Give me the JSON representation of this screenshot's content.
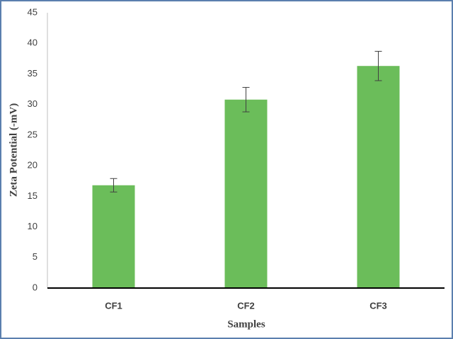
{
  "chart_data": {
    "type": "bar",
    "x_label": "Samples",
    "y_label": "Zeta Potential (-mV)",
    "categories": [
      "CF1",
      "CF2",
      "CF3"
    ],
    "values": [
      16.8,
      30.8,
      36.3
    ],
    "errors": [
      1.1,
      2.0,
      2.4
    ],
    "color": "#6bbd5a",
    "ylim": [
      0,
      45
    ],
    "yticks": [
      0,
      5,
      10,
      15,
      20,
      25,
      30,
      35,
      40,
      45
    ],
    "grid": false
  }
}
